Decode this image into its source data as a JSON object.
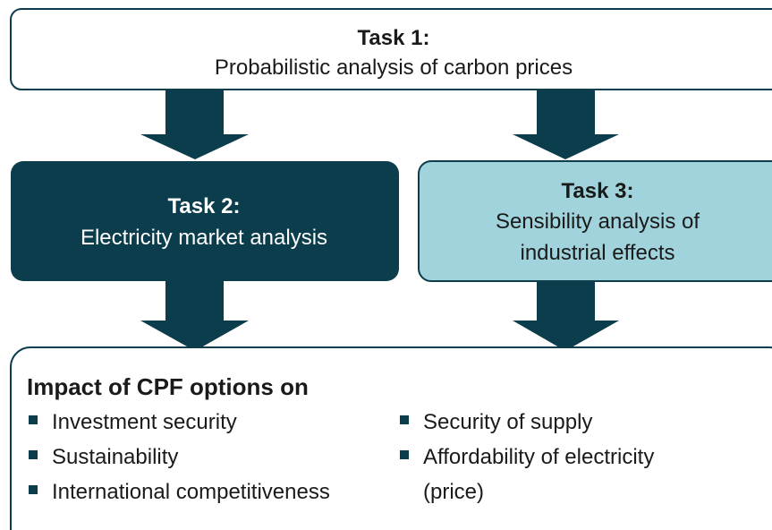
{
  "tasks": [
    {
      "label": "Task 1:",
      "lines": [
        "Probabilistic analysis of carbon prices"
      ]
    },
    {
      "label": "Task 2:",
      "lines": [
        "Electricity market analysis"
      ]
    },
    {
      "label": "Task 3:",
      "lines": [
        "Sensibility analysis of",
        "industrial effects"
      ]
    }
  ],
  "impact": {
    "title": "Impact of CPF options on",
    "left_items": [
      [
        "Investment security"
      ],
      [
        "Sustainability"
      ],
      [
        "International competitiveness"
      ]
    ],
    "right_items": [
      [
        "Security of supply"
      ],
      [
        "Affordability of electricity",
        "(price)"
      ]
    ]
  }
}
